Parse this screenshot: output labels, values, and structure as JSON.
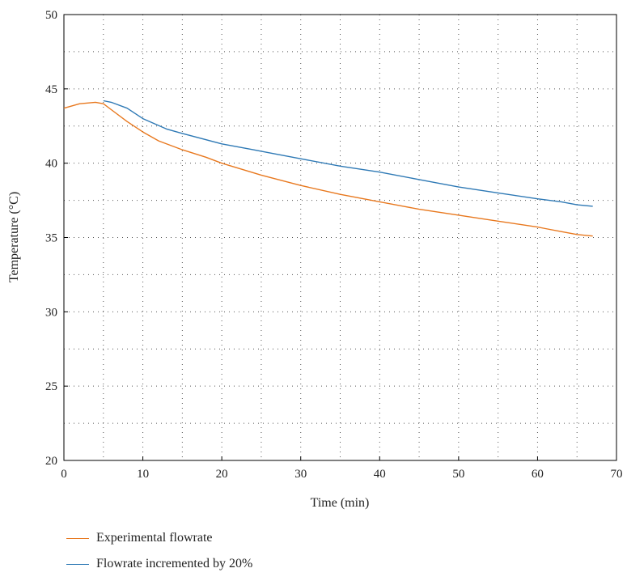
{
  "chart_data": {
    "type": "line",
    "title": "",
    "xlabel": "Time (min)",
    "ylabel": "Temperature (°C)",
    "xlim": [
      0,
      70
    ],
    "ylim": [
      20,
      50
    ],
    "xticks": [
      0,
      10,
      20,
      30,
      40,
      50,
      60,
      70
    ],
    "yticks": [
      20,
      25,
      30,
      35,
      40,
      45,
      50
    ],
    "grid": "dotted",
    "legend_position": "bottom-left",
    "series": [
      {
        "name": "Experimental flowrate",
        "color": "#e8781e",
        "x": [
          0,
          2,
          4,
          5,
          6,
          8,
          10,
          12,
          15,
          18,
          20,
          25,
          30,
          35,
          40,
          45,
          50,
          55,
          60,
          61,
          63,
          65,
          67
        ],
        "y": [
          43.7,
          44.0,
          44.1,
          44.0,
          43.6,
          42.8,
          42.1,
          41.5,
          40.9,
          40.4,
          40.0,
          39.2,
          38.5,
          37.9,
          37.4,
          36.9,
          36.5,
          36.1,
          35.7,
          35.6,
          35.4,
          35.2,
          35.1
        ]
      },
      {
        "name": "Flowrate incremented by 20%",
        "color": "#2e79b5",
        "x": [
          5,
          6,
          8,
          10,
          13,
          15,
          20,
          24,
          26,
          30,
          35,
          40,
          45,
          50,
          55,
          60,
          63,
          65,
          67
        ],
        "y": [
          44.2,
          44.1,
          43.7,
          43.0,
          42.3,
          42.0,
          41.3,
          40.9,
          40.7,
          40.3,
          39.8,
          39.4,
          38.9,
          38.4,
          38.0,
          37.6,
          37.4,
          37.2,
          37.1
        ]
      }
    ]
  }
}
